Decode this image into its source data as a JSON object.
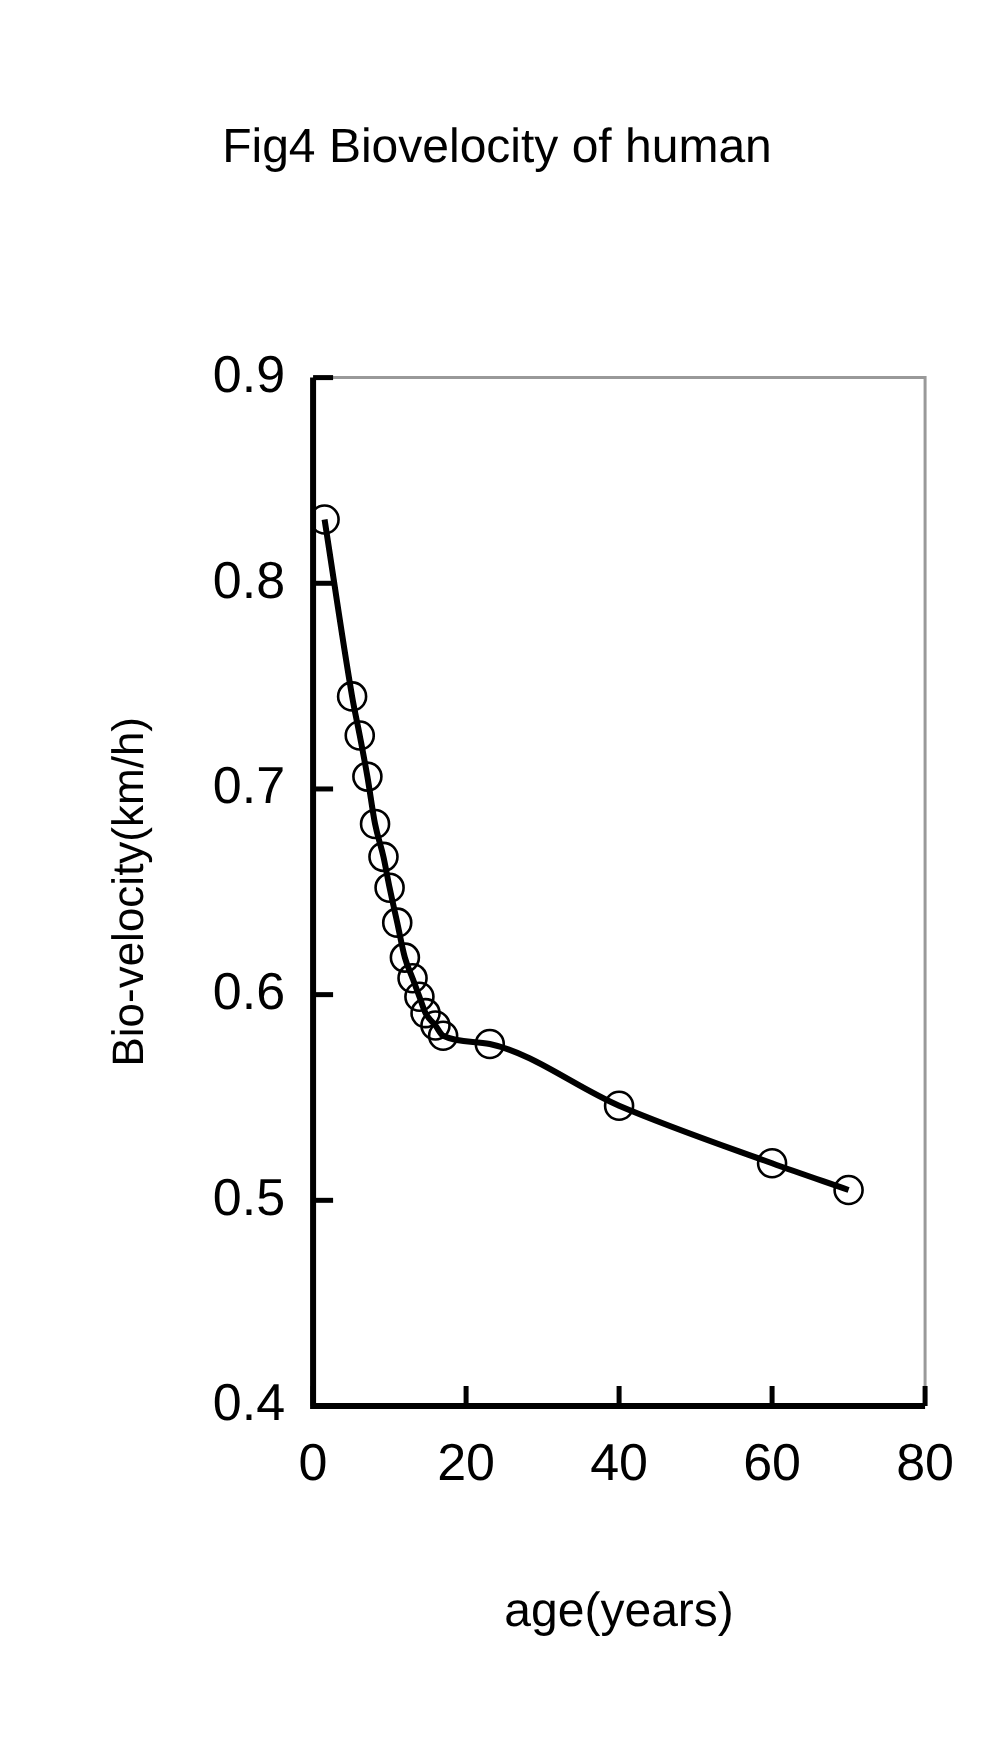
{
  "chart_data": {
    "type": "line",
    "title": "Fig4 Biovelocity of human",
    "xlabel": "age(years)",
    "ylabel": "Bio-velocity(km/h)",
    "x": [
      1.5,
      5.1,
      6.1,
      7.1,
      8.1,
      9.2,
      10,
      11,
      12,
      13,
      13.9,
      14.7,
      16,
      17,
      23.1,
      40,
      60,
      70
    ],
    "series": [
      {
        "color": "#000000",
        "values": [
          0.831,
          0.745,
          0.726,
          0.706,
          0.683,
          0.667,
          0.652,
          0.635,
          0.618,
          0.608,
          0.599,
          0.591,
          0.585,
          0.58,
          0.576,
          0.546,
          0.518,
          0.505
        ]
      }
    ],
    "xlim": [
      0,
      80
    ],
    "xticks": [
      0,
      20,
      40,
      60,
      80
    ],
    "ylim": [
      0.4,
      0.9
    ],
    "yticks": [
      0.4,
      0.5,
      0.6,
      0.7,
      0.8,
      0.9
    ],
    "grid": false,
    "legend": false,
    "marker": "circle",
    "line_style": "solid"
  }
}
